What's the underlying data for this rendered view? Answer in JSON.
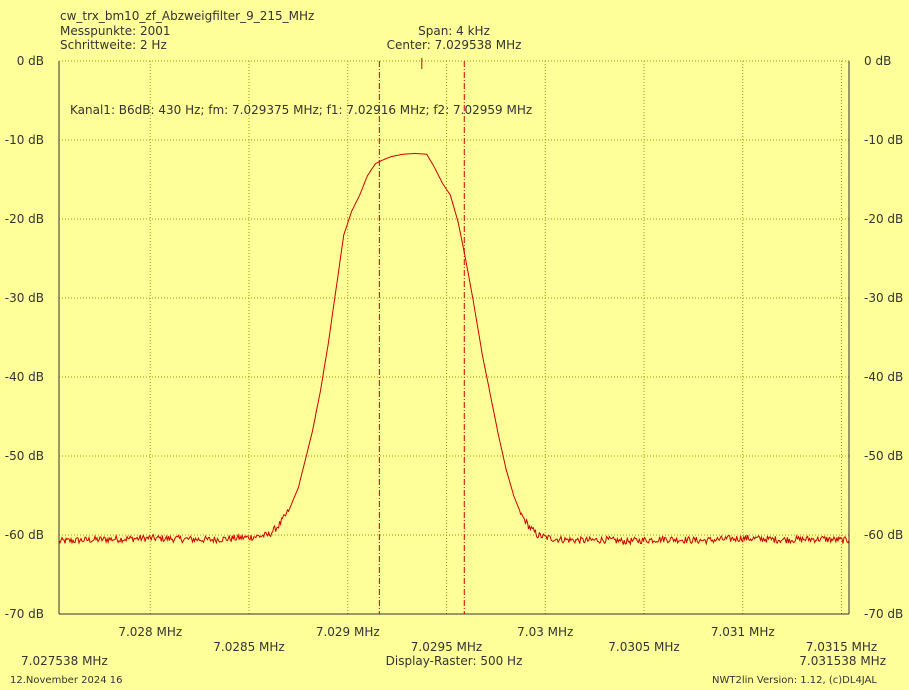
{
  "header": {
    "title": "cw_trx_bm10_zf_Abzweigfilter_9_215_MHz",
    "points": "Messpunkte: 2001",
    "step": "Schrittweite:  2 Hz",
    "span": "Span: 4 kHz",
    "center": "Center: 7.029538 MHz"
  },
  "footer": {
    "date": "12.November 2024 16",
    "version": "NWT2lin Version: 1.12, (c)DL4JAL",
    "raster": "Display-Raster: 500 Hz",
    "start_freq": "7.027538 MHz",
    "end_freq": "7.031538 MHz"
  },
  "colors": {
    "background": "#ffff99",
    "grid": "#999900",
    "trace": "#cc0000",
    "axis": "#333333"
  },
  "chart_data": {
    "type": "line",
    "title": "cw_trx_bm10_zf_Abzweigfilter_9_215_MHz",
    "xlabel": "Display-Raster: 500 Hz",
    "ylabel": "",
    "xlim": [
      7.027538,
      7.031538
    ],
    "ylim": [
      -70,
      0
    ],
    "y_ticks": [
      {
        "v": 0,
        "label": "0 dB"
      },
      {
        "v": -10,
        "label": "-10 dB"
      },
      {
        "v": -20,
        "label": "-20 dB"
      },
      {
        "v": -30,
        "label": "-30 dB"
      },
      {
        "v": -40,
        "label": "-40 dB"
      },
      {
        "v": -50,
        "label": "-50 dB"
      },
      {
        "v": -60,
        "label": "-60 dB"
      },
      {
        "v": -70,
        "label": "-70 dB"
      }
    ],
    "x_ticks": [
      {
        "v": 7.028,
        "label": "7.028 MHz",
        "row": 1
      },
      {
        "v": 7.0285,
        "label": "7.0285 MHz",
        "row": 2
      },
      {
        "v": 7.029,
        "label": "7.029 MHz",
        "row": 1
      },
      {
        "v": 7.0295,
        "label": "7.0295 MHz",
        "row": 2
      },
      {
        "v": 7.03,
        "label": "7.03 MHz",
        "row": 1
      },
      {
        "v": 7.0305,
        "label": "7.0305 MHz",
        "row": 2
      },
      {
        "v": 7.031,
        "label": "7.031 MHz",
        "row": 1
      },
      {
        "v": 7.0315,
        "label": "7.0315 MHz",
        "row": 2
      }
    ],
    "grid": true,
    "markers": [
      {
        "x": 7.02916,
        "label": "f1"
      },
      {
        "x": 7.02959,
        "label": "f2"
      },
      {
        "x": 7.029375,
        "label": "fm"
      }
    ],
    "annotation": "Kanal1: B6dB: 430 Hz; fm: 7.029375 MHz; f1: 7.02916 MHz; f2: 7.02959 MHz",
    "series": [
      {
        "x": [
          7.027538,
          7.0277,
          7.028,
          7.0283,
          7.0285,
          7.0286,
          7.02865,
          7.0287,
          7.02875,
          7.02878,
          7.02882,
          7.02886,
          7.0289,
          7.02894,
          7.02898,
          7.02902,
          7.02906,
          7.0291,
          7.02914,
          7.02918,
          7.02922,
          7.02928,
          7.02934,
          7.0294,
          7.02944,
          7.02948,
          7.02952,
          7.02956,
          7.0296,
          7.02964,
          7.02968,
          7.02972,
          7.02976,
          7.0298,
          7.02984,
          7.02988,
          7.02992,
          7.02996,
          7.03,
          7.03005,
          7.0301,
          7.0302,
          7.0303,
          7.0304,
          7.0306,
          7.0308,
          7.031,
          7.0312,
          7.0314,
          7.031538
        ],
        "values": [
          -60.8,
          -60.6,
          -60.4,
          -60.6,
          -60.3,
          -60.0,
          -58.8,
          -57.0,
          -54.0,
          -51.0,
          -47.0,
          -42.0,
          -36.0,
          -29.0,
          -22.0,
          -19.0,
          -17.0,
          -14.5,
          -13.0,
          -12.5,
          -12.1,
          -11.8,
          -11.7,
          -11.8,
          -13.5,
          -15.5,
          -17.0,
          -20.5,
          -25.5,
          -31.0,
          -37.0,
          -42.0,
          -47.0,
          -51.5,
          -55.0,
          -57.5,
          -59.0,
          -60.0,
          -60.3,
          -60.5,
          -60.6,
          -60.7,
          -60.6,
          -60.8,
          -60.5,
          -60.7,
          -60.4,
          -60.6,
          -60.5,
          -60.7
        ]
      }
    ]
  }
}
